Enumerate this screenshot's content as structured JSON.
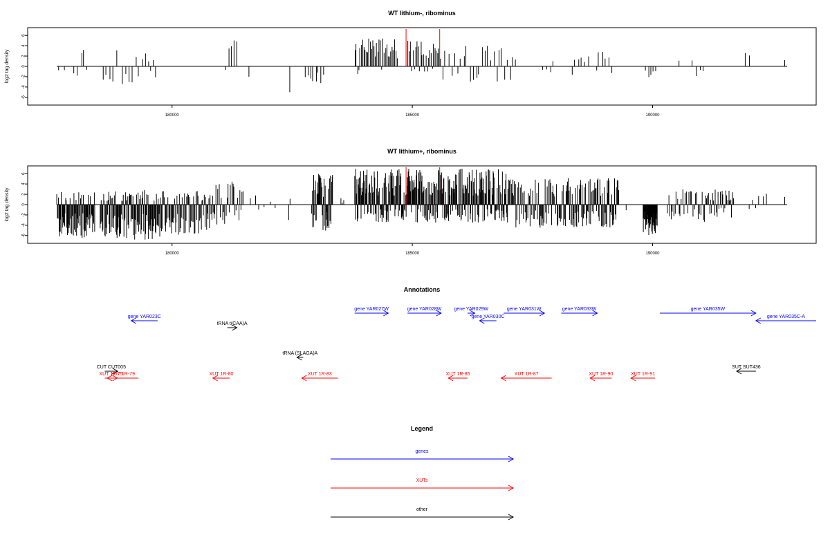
{
  "colors": {
    "gene": "#0000ff",
    "xut": "#ff0000",
    "other": "#000000",
    "highlight": "#ff0000"
  },
  "chart_data": [
    {
      "type": "bar",
      "title": "WT lithium-, ribominus",
      "ylabel": "log2 tag density",
      "xlim": [
        177350,
        193750
      ],
      "ylim": [
        -7.5,
        7.5
      ],
      "xticks": [
        180000,
        185000,
        190000
      ],
      "yticks": [
        6,
        4,
        2,
        0,
        -2,
        -4,
        -6
      ],
      "highlight_x": [
        184870,
        185570
      ],
      "segments": [
        {
          "x0": 177600,
          "x1": 177800,
          "n": 2,
          "min": -1.2,
          "max": -0.5
        },
        {
          "x0": 177950,
          "x1": 178050,
          "n": 2,
          "min": -2.2,
          "max": -1.0
        },
        {
          "x0": 178100,
          "x1": 178250,
          "n": 3,
          "min": -2.0,
          "max": 3.8
        },
        {
          "x0": 178550,
          "x1": 178800,
          "n": 4,
          "min": -3.2,
          "max": -1.5
        },
        {
          "x0": 178850,
          "x1": 178900,
          "n": 1,
          "min": 3.1,
          "max": 3.1
        },
        {
          "x0": 178950,
          "x1": 179500,
          "n": 8,
          "min": -3.5,
          "max": 2.6
        },
        {
          "x0": 179500,
          "x1": 179700,
          "n": 4,
          "min": -3.5,
          "max": 2.2
        },
        {
          "x0": 181100,
          "x1": 181400,
          "n": 5,
          "min": -1.0,
          "max": 5.2
        },
        {
          "x0": 181600,
          "x1": 181650,
          "n": 1,
          "min": -2.0,
          "max": -2.0
        },
        {
          "x0": 182450,
          "x1": 182500,
          "n": 1,
          "min": -5.0,
          "max": -5.0
        },
        {
          "x0": 182750,
          "x1": 183200,
          "n": 8,
          "min": -3.8,
          "max": 1.8
        },
        {
          "x0": 183800,
          "x1": 184700,
          "n": 34,
          "min": -1.5,
          "max": 5.5
        },
        {
          "x0": 184900,
          "x1": 185600,
          "n": 26,
          "min": -1.2,
          "max": 5.2
        },
        {
          "x0": 185600,
          "x1": 186500,
          "n": 14,
          "min": -3.0,
          "max": 4.0
        },
        {
          "x0": 186500,
          "x1": 187200,
          "n": 12,
          "min": -3.5,
          "max": 4.0
        },
        {
          "x0": 187700,
          "x1": 188000,
          "n": 4,
          "min": -2.0,
          "max": 2.5
        },
        {
          "x0": 188300,
          "x1": 188700,
          "n": 6,
          "min": -2.2,
          "max": 3.0
        },
        {
          "x0": 188800,
          "x1": 189200,
          "n": 6,
          "min": -2.0,
          "max": 2.9
        },
        {
          "x0": 189850,
          "x1": 190100,
          "n": 5,
          "min": -3.0,
          "max": -0.5
        },
        {
          "x0": 190550,
          "x1": 190600,
          "n": 1,
          "min": 1.1,
          "max": 1.1
        },
        {
          "x0": 190800,
          "x1": 191100,
          "n": 4,
          "min": -2.0,
          "max": 2.0
        },
        {
          "x0": 191900,
          "x1": 192100,
          "n": 2,
          "min": 2.0,
          "max": 2.7
        },
        {
          "x0": 192750,
          "x1": 192800,
          "n": 1,
          "min": 1.2,
          "max": 1.2
        }
      ]
    },
    {
      "type": "bar",
      "title": "WT lithium+, ribominus",
      "ylabel": "log2 tag density",
      "xlim": [
        177350,
        193750
      ],
      "ylim": [
        -7.5,
        7.5
      ],
      "xticks": [
        180000,
        185000,
        190000
      ],
      "yticks": [
        6,
        4,
        2,
        0,
        -2,
        -4,
        -6
      ],
      "highlight_x": [
        184870,
        185570
      ],
      "segments": [
        {
          "x0": 177600,
          "x1": 178400,
          "n": 70,
          "min": -6.5,
          "max": 2.5
        },
        {
          "x0": 178500,
          "x1": 179800,
          "n": 110,
          "min": -7.0,
          "max": 2.8
        },
        {
          "x0": 179800,
          "x1": 180900,
          "n": 70,
          "min": -6.0,
          "max": 2.7
        },
        {
          "x0": 180900,
          "x1": 181500,
          "n": 25,
          "min": -4.0,
          "max": 4.8
        },
        {
          "x0": 181600,
          "x1": 182200,
          "n": 6,
          "min": -1.0,
          "max": 2.0
        },
        {
          "x0": 182400,
          "x1": 182500,
          "n": 2,
          "min": -5.2,
          "max": 1.2
        },
        {
          "x0": 182900,
          "x1": 183350,
          "n": 40,
          "min": -5.5,
          "max": 6.0
        },
        {
          "x0": 183500,
          "x1": 183600,
          "n": 3,
          "min": -2.5,
          "max": 1.5
        },
        {
          "x0": 183800,
          "x1": 187000,
          "n": 300,
          "min": -3.5,
          "max": 7.0
        },
        {
          "x0": 187000,
          "x1": 188200,
          "n": 70,
          "min": -4.5,
          "max": 5.0
        },
        {
          "x0": 188200,
          "x1": 189300,
          "n": 80,
          "min": -4.5,
          "max": 5.2
        },
        {
          "x0": 189450,
          "x1": 189500,
          "n": 1,
          "min": -1.5,
          "max": 3.0
        },
        {
          "x0": 189800,
          "x1": 190100,
          "n": 40,
          "min": -6.0,
          "max": -1.0
        },
        {
          "x0": 190300,
          "x1": 191100,
          "n": 30,
          "min": -3.5,
          "max": 3.0
        },
        {
          "x0": 191100,
          "x1": 191700,
          "n": 30,
          "min": -2.5,
          "max": 3.0
        },
        {
          "x0": 192000,
          "x1": 192400,
          "n": 6,
          "min": -1.0,
          "max": 2.5
        },
        {
          "x0": 192750,
          "x1": 192800,
          "n": 1,
          "min": 1.5,
          "max": 1.5
        }
      ]
    }
  ],
  "annotations": {
    "title": "Annotations",
    "xlim": [
      177350,
      193750
    ],
    "items": [
      {
        "label": "gene YAR023C",
        "kind": "gene",
        "start": 179150,
        "end": 179700,
        "strand": "-",
        "row": 1
      },
      {
        "label": "tRNA t(CAA)A",
        "kind": "other",
        "start": 181150,
        "end": 181350,
        "strand": "+",
        "row": 2
      },
      {
        "label": "tRNA (SLAGA)A",
        "kind": "other",
        "start": 182600,
        "end": 182730,
        "strand": "-",
        "row": 3
      },
      {
        "label": "CUT CUT005",
        "kind": "other",
        "start": 178600,
        "end": 178870,
        "strand": "+",
        "row": 4
      },
      {
        "label": "XUT 1F-75",
        "kind": "xut",
        "start": 178600,
        "end": 178860,
        "strand": "+",
        "row": 5
      },
      {
        "label": "XUT 1R-79",
        "kind": "xut",
        "start": 178650,
        "end": 179300,
        "strand": "-",
        "row": 6
      },
      {
        "label": "XUT 1R-80",
        "kind": "xut",
        "start": 180850,
        "end": 181200,
        "strand": "-",
        "row": 6
      },
      {
        "label": "XUT 1R-83",
        "kind": "xut",
        "start": 182700,
        "end": 183450,
        "strand": "-",
        "row": 6
      },
      {
        "label": "gene YAR027W",
        "kind": "gene",
        "start": 183800,
        "end": 184500,
        "strand": "+",
        "row": 0
      },
      {
        "label": "gene YAR028W",
        "kind": "gene",
        "start": 184900,
        "end": 185600,
        "strand": "+",
        "row": 0
      },
      {
        "label": "gene YAR029W",
        "kind": "gene",
        "start": 186150,
        "end": 186300,
        "strand": "+",
        "row": 0
      },
      {
        "label": "gene YAR030C",
        "kind": "gene",
        "start": 186400,
        "end": 186750,
        "strand": "-",
        "row": 1
      },
      {
        "label": "gene YAR031W",
        "kind": "gene",
        "start": 186900,
        "end": 187750,
        "strand": "+",
        "row": 0
      },
      {
        "label": "gene YAR033W",
        "kind": "gene",
        "start": 188100,
        "end": 188850,
        "strand": "+",
        "row": 0
      },
      {
        "label": "gene YAR035W",
        "kind": "gene",
        "start": 190150,
        "end": 192150,
        "strand": "+",
        "row": 0
      },
      {
        "label": "gene YAR035C-A",
        "kind": "gene",
        "start": 192150,
        "end": 193750,
        "strand": "-",
        "row": 1
      },
      {
        "label": "SUT SUT436",
        "kind": "other",
        "start": 191750,
        "end": 192150,
        "strand": "-",
        "row": 4
      },
      {
        "label": "XUT 1R-85",
        "kind": "xut",
        "start": 185750,
        "end": 186150,
        "strand": "-",
        "row": 6
      },
      {
        "label": "XUT 1R-87",
        "kind": "xut",
        "start": 186850,
        "end": 187900,
        "strand": "-",
        "row": 6
      },
      {
        "label": "XUT 1R-90",
        "kind": "xut",
        "start": 188700,
        "end": 189150,
        "strand": "-",
        "row": 6
      },
      {
        "label": "XUT 1R-91",
        "kind": "xut",
        "start": 189550,
        "end": 190050,
        "strand": "-",
        "row": 6
      }
    ]
  },
  "legend": {
    "title": "Legend",
    "items": [
      {
        "label": "genes",
        "kind": "gene"
      },
      {
        "label": "XUTs",
        "kind": "xut"
      },
      {
        "label": "other",
        "kind": "other"
      }
    ]
  }
}
